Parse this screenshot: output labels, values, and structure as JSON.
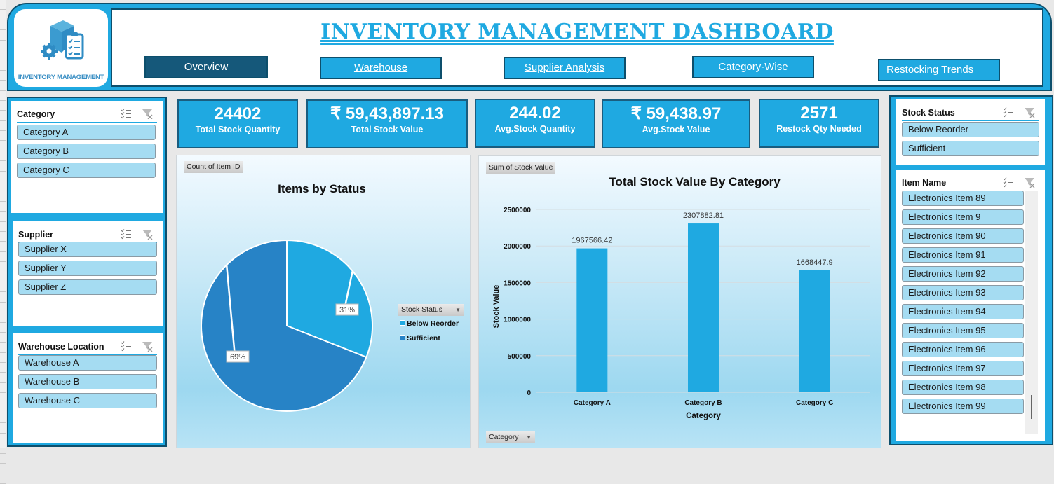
{
  "header": {
    "logo_text": "INVENTORY MANAGEMENT",
    "title": "INVENTORY MANAGEMENT DASHBOARD",
    "nav": [
      {
        "label": "Overview",
        "active": true
      },
      {
        "label": "Warehouse",
        "active": false
      },
      {
        "label": "Supplier Analysis",
        "active": false
      },
      {
        "label": "Category-Wise",
        "active": false
      },
      {
        "label": "Restocking Trends",
        "active": false
      }
    ]
  },
  "slicers": {
    "category": {
      "title": "Category",
      "items": [
        "Category A",
        "Category B",
        "Category C"
      ]
    },
    "supplier": {
      "title": "Supplier",
      "items": [
        "Supplier X",
        "Supplier Y",
        "Supplier Z"
      ]
    },
    "warehouse": {
      "title": "Warehouse Location",
      "items": [
        "Warehouse A",
        "Warehouse B",
        "Warehouse C"
      ]
    },
    "stock_status": {
      "title": "Stock Status",
      "items": [
        "Below Reorder",
        "Sufficient"
      ]
    },
    "item_name": {
      "title": "Item Name",
      "items": [
        "Electronics Item 89",
        "Electronics Item 9",
        "Electronics Item 90",
        "Electronics Item 91",
        "Electronics Item 92",
        "Electronics Item 93",
        "Electronics Item 94",
        "Electronics Item 95",
        "Electronics Item 96",
        "Electronics Item 97",
        "Electronics Item 98",
        "Electronics Item 99"
      ]
    }
  },
  "kpis": [
    {
      "value": "24402",
      "label": "Total Stock Quantity"
    },
    {
      "value": "₹ 59,43,897.13",
      "label": "Total Stock Value"
    },
    {
      "value": "244.02",
      "label": "Avg.Stock Quantity"
    },
    {
      "value": "₹ 59,438.97",
      "label": "Avg.Stock Value"
    },
    {
      "value": "2571",
      "label": "Restock Qty Needed"
    }
  ],
  "colors": {
    "accent": "#1fa9e1",
    "dark": "#0d4f6c",
    "pie_below": "#1fa9e1",
    "pie_sufficient": "#2783c6"
  },
  "chart_data": [
    {
      "type": "pie",
      "title": "Items by Status",
      "field_button": "Count of Item ID",
      "legend_title": "Stock Status",
      "legend_position": "right",
      "categories": [
        "Below Reorder",
        "Sufficient"
      ],
      "values": [
        31,
        69
      ],
      "labels": [
        "31%",
        "69%"
      ]
    },
    {
      "type": "bar",
      "title": "Total Stock Value By Category",
      "field_button": "Sum of Stock Value",
      "axis_button": "Category",
      "xlabel": "Category",
      "ylabel": "Stock Value",
      "categories": [
        "Category A",
        "Category B",
        "Category C"
      ],
      "values": [
        1967566.42,
        2307882.81,
        1668447.9
      ],
      "value_labels": [
        "1967566.42",
        "2307882.81",
        "1668447.9"
      ],
      "ylim": [
        0,
        2500000
      ],
      "yticks": [
        "0",
        "500000",
        "1000000",
        "1500000",
        "2000000",
        "2500000"
      ],
      "grid": true
    }
  ]
}
